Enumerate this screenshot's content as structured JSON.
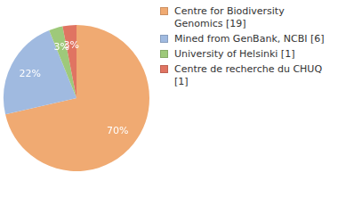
{
  "chart_data": {
    "type": "pie",
    "categories": [
      "Centre for Biodiversity Genomics [19]",
      "Mined from GenBank, NCBI [6]",
      "University of Helsinki [1]",
      "Centre de recherche du CHUQ [1]"
    ],
    "values": [
      70,
      22,
      3,
      3
    ],
    "value_labels": [
      "70%",
      "22%",
      "3%",
      "3%"
    ],
    "colors": [
      "#f0aa72",
      "#a0bae0",
      "#9ec97a",
      "#e07462"
    ],
    "data_labels": true,
    "legend": "upper right"
  }
}
